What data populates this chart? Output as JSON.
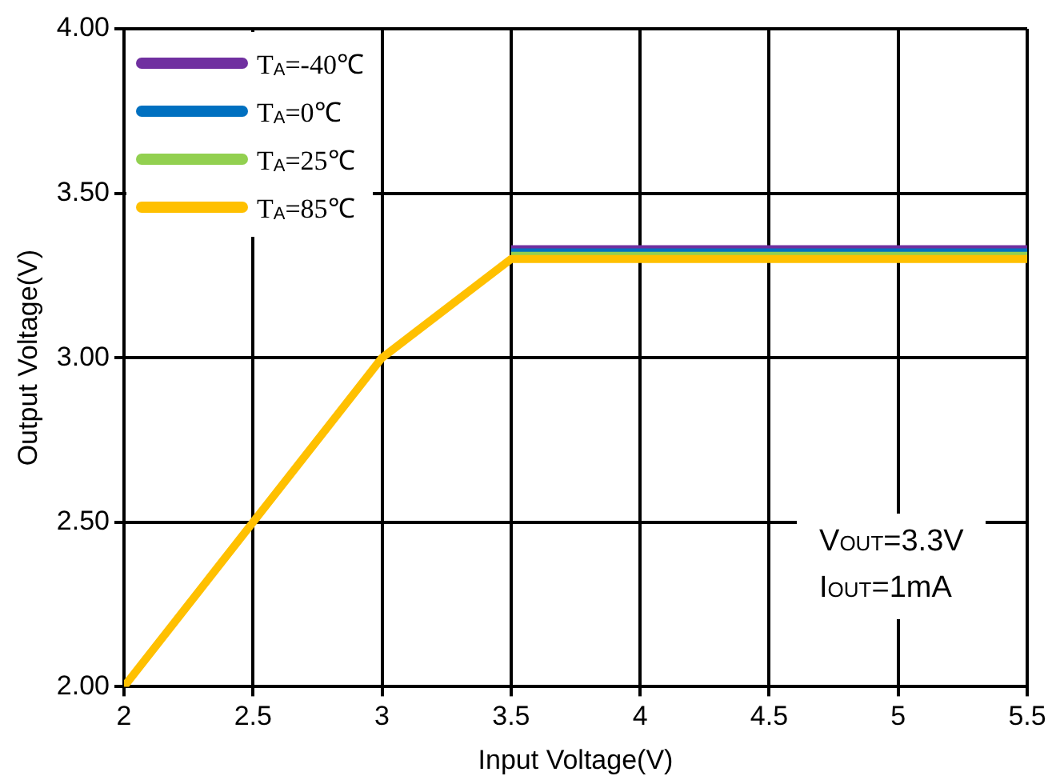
{
  "chart_data": {
    "type": "line",
    "xlabel": "Input Voltage(V)",
    "ylabel": "Output Voltage(V)",
    "xlim": [
      2,
      5.5
    ],
    "xticks": [
      2,
      2.5,
      3,
      3.5,
      4,
      4.5,
      5,
      5.5
    ],
    "ylim": [
      2,
      4
    ],
    "yticks": [
      {
        "value": 2,
        "label": "2.00"
      },
      {
        "value": 2.5,
        "label": "2.50"
      },
      {
        "value": 3,
        "label": "3.00"
      },
      {
        "value": 3.5,
        "label": "3.50"
      },
      {
        "value": 4,
        "label": "4.00"
      }
    ],
    "grid": true,
    "legend": "top left",
    "marker": "none",
    "line_style": "solid",
    "series": [
      {
        "name": "T$_{A}$=-40℃",
        "color": "#7030a0",
        "x": [
          3.5,
          5.5
        ],
        "values": [
          3.33,
          3.33
        ]
      },
      {
        "name": "T$_{A}$=0℃",
        "color": "#0070c0",
        "x": [
          3.5,
          5.5
        ],
        "values": [
          3.32,
          3.32
        ]
      },
      {
        "name": "T$_{A}$=25℃",
        "color": "#92d050",
        "x": [
          3.5,
          5.5
        ],
        "values": [
          3.31,
          3.31
        ]
      },
      {
        "name": "T$_{A}$=85℃",
        "color": "#ffc000",
        "x": [
          2,
          3,
          3.5,
          5.5
        ],
        "values": [
          2,
          3,
          3.3,
          3.3
        ]
      }
    ],
    "annotations": [
      "V$_{OUT}$=3.3V",
      "I$_{OUT}$=1mA"
    ]
  }
}
